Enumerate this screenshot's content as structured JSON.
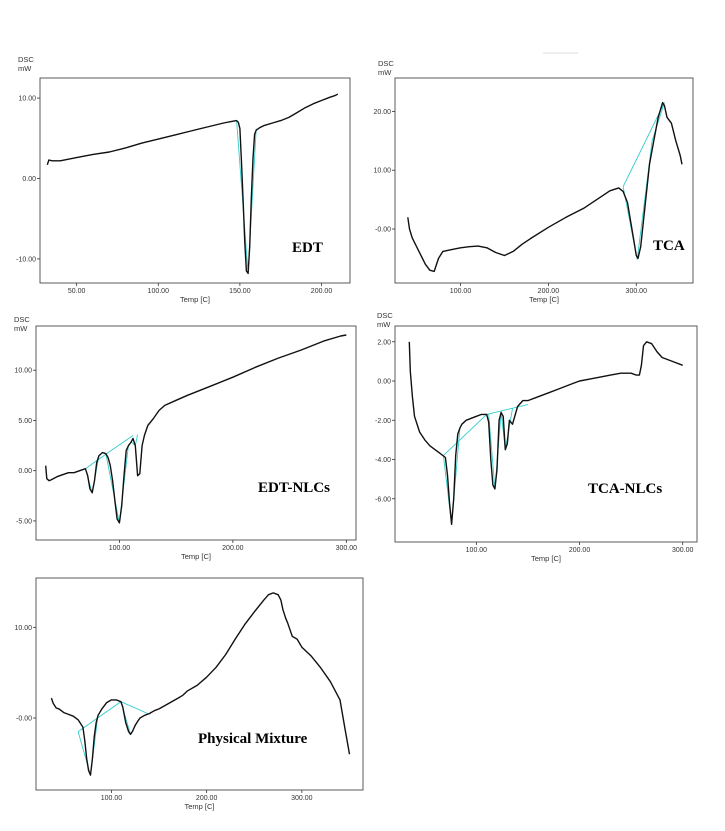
{
  "colors": {
    "curve": "#111111",
    "baseline": "#33cccc",
    "frame": "#333333"
  },
  "chart_data": [
    {
      "type": "line",
      "panel_label": "EDT",
      "ylabel_top": "DSC",
      "ylabel_unit": "mW",
      "xlabel": "Temp  [C]",
      "xlim": [
        30,
        215
      ],
      "ylim": [
        -12.5,
        12
      ],
      "xticks": [
        50,
        100,
        150,
        200
      ],
      "xtick_labels": [
        "50.00",
        "100.00",
        "150.00",
        "200.00"
      ],
      "yticks": [
        10,
        0,
        -10
      ],
      "ytick_labels": [
        "10.00",
        "0.00",
        "-10.00"
      ],
      "grid": false,
      "series": [
        {
          "x": [
            32,
            33,
            35,
            40,
            50,
            60,
            70,
            80,
            90,
            100,
            110,
            120,
            130,
            140,
            145,
            148,
            149,
            150,
            151,
            152,
            153,
            154,
            155,
            156,
            157,
            158,
            159,
            160,
            162,
            165,
            170,
            175,
            180,
            185,
            190,
            195,
            200,
            205,
            208,
            210
          ],
          "y": [
            1.7,
            2.3,
            2.2,
            2.2,
            2.6,
            3.0,
            3.3,
            3.8,
            4.4,
            4.9,
            5.4,
            5.9,
            6.4,
            6.9,
            7.1,
            7.2,
            7.0,
            6.2,
            2.0,
            -3.0,
            -8.0,
            -11.5,
            -11.8,
            -8.5,
            -2.5,
            2.5,
            5.5,
            6.0,
            6.3,
            6.6,
            6.9,
            7.2,
            7.6,
            8.2,
            8.8,
            9.3,
            9.7,
            10.1,
            10.3,
            10.5
          ]
        }
      ],
      "baselines": [
        [
          [
            148,
            7.2
          ],
          [
            155,
            -11.8
          ],
          [
            160,
            6.2
          ]
        ]
      ]
    },
    {
      "type": "line",
      "panel_label": "TCA",
      "ylabel_top": "DSC",
      "ylabel_unit": "mW",
      "xlabel": "Temp  [C]",
      "xlim": [
        30,
        360
      ],
      "ylim": [
        -8.5,
        25
      ],
      "xticks": [
        100,
        200,
        300
      ],
      "xtick_labels": [
        "100.00",
        "200.00",
        "300.00"
      ],
      "yticks": [
        20,
        10,
        0
      ],
      "ytick_labels": [
        "20.00",
        "10.00",
        "-0.00"
      ],
      "grid": false,
      "series": [
        {
          "x": [
            40,
            42,
            45,
            50,
            55,
            60,
            65,
            70,
            75,
            80,
            90,
            100,
            110,
            120,
            130,
            140,
            150,
            160,
            170,
            180,
            200,
            220,
            240,
            260,
            270,
            280,
            285,
            290,
            295,
            300,
            302,
            305,
            310,
            315,
            320,
            325,
            330,
            332,
            335,
            340,
            345,
            350,
            352
          ],
          "y": [
            2.0,
            0.0,
            -1.5,
            -3.0,
            -4.5,
            -6.0,
            -7.0,
            -7.2,
            -5.0,
            -3.8,
            -3.5,
            -3.2,
            -3.0,
            -2.9,
            -3.2,
            -4.0,
            -4.5,
            -3.8,
            -2.6,
            -1.6,
            0.3,
            2.0,
            3.5,
            5.5,
            6.5,
            7.0,
            6.4,
            4.5,
            0.0,
            -4.5,
            -5.0,
            -3.0,
            4.0,
            11.0,
            15.0,
            19.0,
            21.5,
            21.0,
            19.0,
            18.0,
            15.0,
            12.5,
            11.0
          ]
        }
      ],
      "baselines": [
        [
          [
            285,
            7.2
          ],
          [
            332,
            21.5
          ]
        ],
        [
          [
            285,
            7.2
          ],
          [
            301,
            -5.2
          ],
          [
            318,
            15.0
          ],
          [
            332,
            21.5
          ]
        ]
      ]
    },
    {
      "type": "line",
      "panel_label": "EDT-NLCs",
      "ylabel_top": "DSC",
      "ylabel_unit": "mW",
      "xlabel": "Temp  [C]",
      "xlim": [
        30,
        305
      ],
      "ylim": [
        -6.5,
        14
      ],
      "xticks": [
        100,
        200,
        300
      ],
      "xtick_labels": [
        "100.00",
        "200.00",
        "300.00"
      ],
      "yticks": [
        10,
        5,
        0,
        -5
      ],
      "ytick_labels": [
        "10.00",
        "5.00",
        "0.00",
        "-5.00"
      ],
      "grid": false,
      "series": [
        {
          "x": [
            35,
            36,
            38,
            40,
            45,
            50,
            55,
            60,
            65,
            70,
            72,
            74,
            76,
            78,
            80,
            82,
            85,
            88,
            90,
            92,
            94,
            96,
            98,
            100,
            102,
            104,
            106,
            108,
            110,
            112,
            114,
            116,
            118,
            120,
            122,
            125,
            130,
            135,
            140,
            150,
            160,
            180,
            200,
            220,
            240,
            260,
            280,
            295,
            300
          ],
          "y": [
            0.5,
            -0.8,
            -1.0,
            -0.9,
            -0.6,
            -0.4,
            -0.2,
            -0.2,
            0.0,
            0.2,
            -0.5,
            -1.8,
            -2.2,
            -1.0,
            0.8,
            1.5,
            1.8,
            1.7,
            1.3,
            0.5,
            -1.0,
            -3.0,
            -4.8,
            -5.2,
            -3.5,
            -0.5,
            2.0,
            2.5,
            2.8,
            3.2,
            2.5,
            -0.5,
            -0.3,
            2.5,
            3.5,
            4.5,
            5.2,
            6.0,
            6.5,
            7.0,
            7.5,
            8.4,
            9.3,
            10.3,
            11.2,
            12.0,
            12.9,
            13.4,
            13.5
          ]
        }
      ],
      "baselines": [
        [
          [
            70,
            0.2
          ],
          [
            90,
            1.8
          ],
          [
            112,
            3.5
          ]
        ],
        [
          [
            70,
            0.2
          ],
          [
            76,
            -2.2
          ],
          [
            82,
            1.5
          ]
        ],
        [
          [
            88,
            1.7
          ],
          [
            100,
            -5.2
          ],
          [
            108,
            2.6
          ]
        ],
        [
          [
            110,
            2.9
          ],
          [
            114,
            2.5
          ],
          [
            116,
            3.6
          ]
        ]
      ]
    },
    {
      "type": "line",
      "panel_label": "TCA-NLCs",
      "ylabel_top": "DSC",
      "ylabel_unit": "mW",
      "xlabel": "Temp  [C]",
      "xlim": [
        25,
        310
      ],
      "ylim": [
        -8,
        2.6
      ],
      "xticks": [
        100,
        200,
        300
      ],
      "xtick_labels": [
        "100.00",
        "200.00",
        "300.00"
      ],
      "yticks": [
        2,
        0,
        -2,
        -4,
        -6
      ],
      "ytick_labels": [
        "2.00",
        "0.00",
        "-2.00",
        "-4.00",
        "-6.00"
      ],
      "grid": false,
      "series": [
        {
          "x": [
            35,
            36,
            38,
            40,
            45,
            50,
            55,
            60,
            65,
            70,
            72,
            74,
            76,
            78,
            80,
            82,
            84,
            86,
            90,
            95,
            100,
            105,
            110,
            112,
            114,
            116,
            118,
            120,
            122,
            124,
            126,
            128,
            130,
            132,
            135,
            140,
            145,
            150,
            160,
            170,
            180,
            190,
            200,
            210,
            220,
            230,
            240,
            250,
            255,
            258,
            260,
            262,
            265,
            270,
            275,
            280,
            290,
            300
          ],
          "y": [
            2.0,
            0.5,
            -0.8,
            -1.8,
            -2.6,
            -3.0,
            -3.3,
            -3.5,
            -3.7,
            -3.9,
            -4.8,
            -6.2,
            -7.3,
            -6.0,
            -3.8,
            -2.7,
            -2.4,
            -2.2,
            -2.0,
            -1.9,
            -1.8,
            -1.7,
            -1.7,
            -2.1,
            -4.0,
            -5.3,
            -5.5,
            -4.5,
            -2.0,
            -1.6,
            -1.8,
            -3.5,
            -3.2,
            -2.0,
            -2.2,
            -1.3,
            -1.0,
            -1.0,
            -0.8,
            -0.6,
            -0.4,
            -0.2,
            0.0,
            0.1,
            0.2,
            0.3,
            0.4,
            0.4,
            0.3,
            0.3,
            0.8,
            1.8,
            2.0,
            1.9,
            1.5,
            1.2,
            1.0,
            0.8
          ]
        }
      ],
      "baselines": [
        [
          [
            68,
            -3.8
          ],
          [
            110,
            -1.7
          ],
          [
            150,
            -1.2
          ]
        ],
        [
          [
            68,
            -3.8
          ],
          [
            76,
            -7.3
          ],
          [
            84,
            -2.4
          ]
        ],
        [
          [
            112,
            -1.7
          ],
          [
            118,
            -5.5
          ],
          [
            124,
            -1.6
          ]
        ],
        [
          [
            124,
            -1.6
          ],
          [
            128,
            -3.5
          ],
          [
            135,
            -1.4
          ]
        ]
      ]
    },
    {
      "type": "line",
      "panel_label": "Physical Mixture",
      "ylabel_top": "",
      "ylabel_unit": "",
      "xlabel": "Temp  [C]",
      "xlim": [
        25,
        360
      ],
      "ylim": [
        -7.5,
        15
      ],
      "xticks": [
        100,
        200,
        300
      ],
      "xtick_labels": [
        "100.00",
        "200.00",
        "300.00"
      ],
      "yticks": [
        10,
        0
      ],
      "ytick_labels": [
        "10.00",
        "-0.00"
      ],
      "grid": false,
      "series": [
        {
          "x": [
            37,
            39,
            42,
            45,
            50,
            55,
            60,
            65,
            70,
            72,
            74,
            76,
            78,
            80,
            82,
            84,
            86,
            90,
            95,
            100,
            105,
            110,
            112,
            115,
            118,
            120,
            122,
            125,
            128,
            130,
            135,
            140,
            145,
            150,
            160,
            170,
            175,
            180,
            190,
            200,
            210,
            220,
            230,
            240,
            250,
            260,
            265,
            270,
            275,
            278,
            280,
            283,
            285,
            290,
            295,
            300,
            310,
            320,
            330,
            340,
            345,
            350
          ],
          "y": [
            2.2,
            1.6,
            1.1,
            1.0,
            0.6,
            0.4,
            0.2,
            -0.2,
            -1.0,
            -2.5,
            -4.5,
            -5.8,
            -6.3,
            -4.5,
            -2.0,
            -0.5,
            0.3,
            1.0,
            1.7,
            2.0,
            2.0,
            1.8,
            1.2,
            -0.5,
            -1.5,
            -1.8,
            -1.5,
            -0.8,
            -0.3,
            0.0,
            0.3,
            0.5,
            0.8,
            1.0,
            1.6,
            2.2,
            2.5,
            3.0,
            3.6,
            4.5,
            5.6,
            7.0,
            8.7,
            10.3,
            11.7,
            13.0,
            13.6,
            13.8,
            13.6,
            13.0,
            12.0,
            11.0,
            10.5,
            9.0,
            8.7,
            7.8,
            6.8,
            5.5,
            4.0,
            2.0,
            -1.0,
            -4.0
          ]
        }
      ],
      "baselines": [
        [
          [
            65,
            -1.5
          ],
          [
            110,
            1.8
          ],
          [
            140,
            0.4
          ]
        ],
        [
          [
            65,
            -1.5
          ],
          [
            78,
            -6.3
          ],
          [
            86,
            0.4
          ]
        ],
        [
          [
            110,
            1.8
          ],
          [
            120,
            -1.8
          ],
          [
            128,
            -0.3
          ]
        ]
      ]
    }
  ]
}
